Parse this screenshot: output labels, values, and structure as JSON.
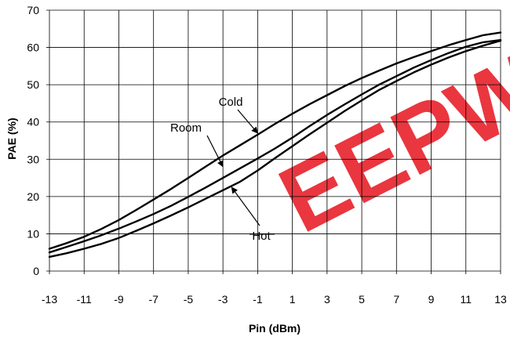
{
  "chart_data": {
    "type": "line",
    "title": "",
    "xlabel": "Pin (dBm)",
    "ylabel": "PAE (%)",
    "xlim": [
      -13,
      13
    ],
    "ylim": [
      0,
      70
    ],
    "xticks": [
      "-13",
      "-11",
      "-9",
      "-7",
      "-5",
      "-3",
      "-1",
      "1",
      "3",
      "5",
      "7",
      "9",
      "11",
      "13"
    ],
    "yticks": [
      "0",
      "10",
      "20",
      "30",
      "40",
      "50",
      "60",
      "70"
    ],
    "grid": true,
    "series": [
      {
        "name": "Cold",
        "x": [
          -13,
          -12,
          -11,
          -10,
          -9,
          -8,
          -7,
          -6,
          -5,
          -4,
          -3,
          -2,
          -1,
          0,
          1,
          2,
          3,
          4,
          5,
          6,
          7,
          8,
          9,
          10,
          11,
          12,
          13
        ],
        "y": [
          6,
          7.5,
          9.2,
          11.3,
          13.7,
          16.4,
          19.2,
          22,
          25,
          28,
          31,
          33.8,
          36.6,
          39.5,
          42.2,
          44.8,
          47.2,
          49.6,
          51.8,
          53.8,
          55.7,
          57.4,
          59,
          60.6,
          62,
          63.3,
          64
        ]
      },
      {
        "name": "Room",
        "x": [
          -13,
          -12,
          -11,
          -10,
          -9,
          -8,
          -7,
          -6,
          -5,
          -4,
          -3,
          -2,
          -1,
          0,
          1,
          2,
          3,
          4,
          5,
          6,
          7,
          8,
          9,
          10,
          11,
          12,
          13
        ],
        "y": [
          5,
          6.5,
          8,
          9.6,
          11.4,
          13.3,
          15.3,
          17.5,
          19.9,
          22.4,
          25,
          27.6,
          30.2,
          32.9,
          35.8,
          38.9,
          41.9,
          44.7,
          47.4,
          50,
          52.3,
          54.6,
          56.6,
          58.5,
          60.2,
          61.4,
          62
        ]
      },
      {
        "name": "Hot",
        "x": [
          -13,
          -12,
          -11,
          -10,
          -9,
          -8,
          -7,
          -6,
          -5,
          -4,
          -3,
          -2,
          -1,
          0,
          1,
          2,
          3,
          4,
          5,
          6,
          7,
          8,
          9,
          10,
          11,
          12,
          13
        ],
        "y": [
          3.8,
          4.8,
          6,
          7.3,
          8.9,
          10.8,
          12.8,
          14.9,
          17.1,
          19.4,
          21.7,
          24,
          27,
          30.3,
          33.5,
          36.7,
          39.8,
          42.9,
          45.8,
          48.6,
          51,
          53.3,
          55.4,
          57.3,
          59,
          60.5,
          61.8
        ]
      }
    ],
    "annotations": [
      {
        "text": "Cold",
        "arrow_to": [
          -1,
          37
        ]
      },
      {
        "text": "Room",
        "arrow_to": [
          -3,
          28
        ]
      },
      {
        "text": "Hot",
        "arrow_to": [
          -2.5,
          22.5
        ]
      }
    ]
  },
  "watermark": {
    "text": "EEPW",
    "color": "#e8202a"
  },
  "colors": {
    "series_line": "#000000",
    "watermark": "#e8202a"
  }
}
